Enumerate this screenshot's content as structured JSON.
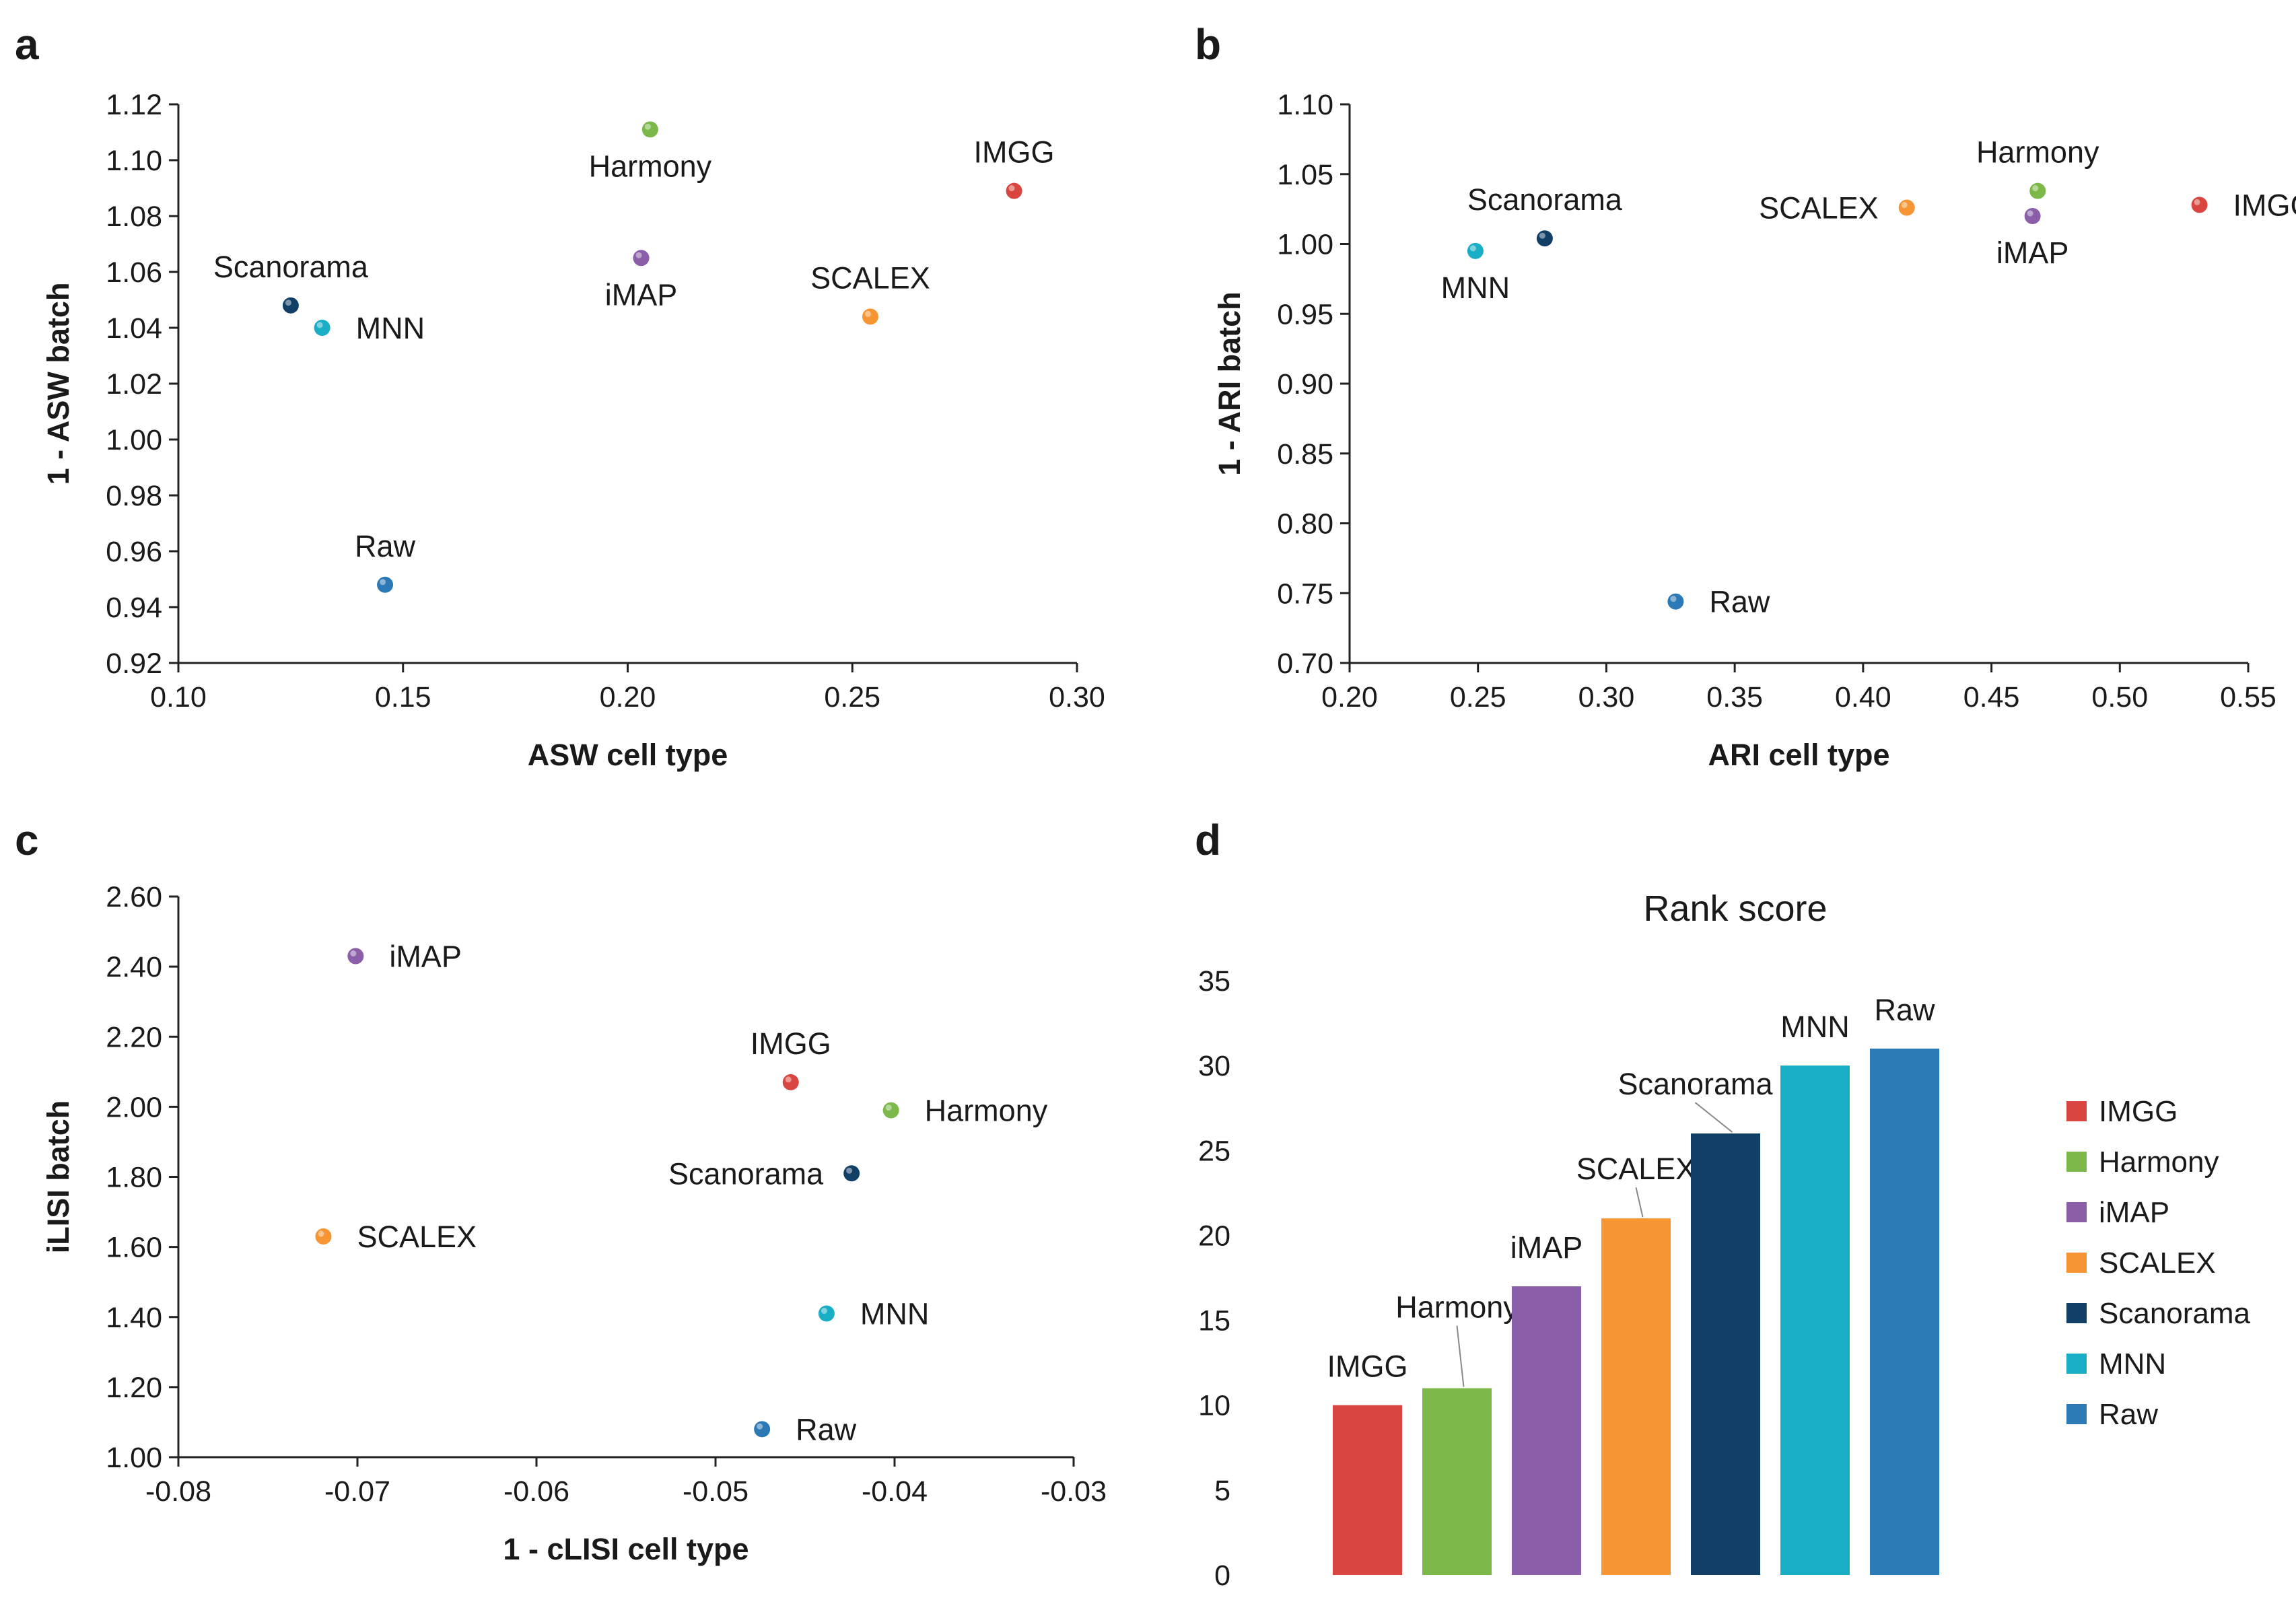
{
  "colors": {
    "IMGG": "#d9453f",
    "Harmony": "#7db84a",
    "iMAP": "#8a5ea8",
    "SCALEX": "#f79433",
    "Scanorama": "#123f66",
    "MNN": "#19aec6",
    "Raw": "#2b79b5"
  },
  "chart_data": [
    {
      "panel": "a",
      "type": "scatter",
      "title": "",
      "xlabel": "ASW cell type",
      "ylabel": "1 - ASW batch",
      "xlim": [
        0.1,
        0.3
      ],
      "ylim": [
        0.92,
        1.12
      ],
      "xticks": [
        "0.10",
        "0.15",
        "0.20",
        "0.25",
        "0.30"
      ],
      "yticks": [
        "0.92",
        "0.94",
        "0.96",
        "0.98",
        "1.00",
        "1.02",
        "1.04",
        "1.06",
        "1.08",
        "1.10",
        "1.12"
      ],
      "points": [
        {
          "name": "Harmony",
          "x": 0.205,
          "y": 1.111,
          "label_pos": "below"
        },
        {
          "name": "IMGG",
          "x": 0.286,
          "y": 1.089,
          "label_pos": "above"
        },
        {
          "name": "iMAP",
          "x": 0.203,
          "y": 1.065,
          "label_pos": "below"
        },
        {
          "name": "SCALEX",
          "x": 0.254,
          "y": 1.044,
          "label_pos": "above"
        },
        {
          "name": "Scanorama",
          "x": 0.125,
          "y": 1.048,
          "label_pos": "above"
        },
        {
          "name": "MNN",
          "x": 0.132,
          "y": 1.04,
          "label_pos": "right"
        },
        {
          "name": "Raw",
          "x": 0.146,
          "y": 0.948,
          "label_pos": "above"
        }
      ]
    },
    {
      "panel": "b",
      "type": "scatter",
      "title": "",
      "xlabel": "ARI cell type",
      "ylabel": "1 - ARI batch",
      "xlim": [
        0.2,
        0.55
      ],
      "ylim": [
        0.7,
        1.1
      ],
      "xticks": [
        "0.20",
        "0.25",
        "0.30",
        "0.35",
        "0.40",
        "0.45",
        "0.50",
        "0.55"
      ],
      "yticks": [
        "0.70",
        "0.75",
        "0.80",
        "0.85",
        "0.90",
        "0.95",
        "1.00",
        "1.05",
        "1.10"
      ],
      "points": [
        {
          "name": "Harmony",
          "x": 0.468,
          "y": 1.038,
          "label_pos": "above"
        },
        {
          "name": "IMGG",
          "x": 0.531,
          "y": 1.028,
          "label_pos": "right"
        },
        {
          "name": "SCALEX",
          "x": 0.417,
          "y": 1.026,
          "label_pos": "left"
        },
        {
          "name": "iMAP",
          "x": 0.466,
          "y": 1.02,
          "label_pos": "below"
        },
        {
          "name": "Scanorama",
          "x": 0.276,
          "y": 1.004,
          "label_pos": "above"
        },
        {
          "name": "MNN",
          "x": 0.249,
          "y": 0.995,
          "label_pos": "below"
        },
        {
          "name": "Raw",
          "x": 0.327,
          "y": 0.744,
          "label_pos": "right"
        }
      ]
    },
    {
      "panel": "c",
      "type": "scatter",
      "title": "",
      "xlabel": "1 - cLISI cell type",
      "ylabel": "iLISI batch",
      "xlim": [
        -0.08,
        -0.03
      ],
      "ylim": [
        1.0,
        2.6
      ],
      "xticks": [
        "-0.08",
        "-0.07",
        "-0.06",
        "-0.05",
        "-0.04",
        "-0.03"
      ],
      "yticks": [
        "1.00",
        "1.20",
        "1.40",
        "1.60",
        "1.80",
        "2.00",
        "2.20",
        "2.40",
        "2.60"
      ],
      "points": [
        {
          "name": "iMAP",
          "x": -0.0701,
          "y": 2.43,
          "label_pos": "right"
        },
        {
          "name": "IMGG",
          "x": -0.0458,
          "y": 2.07,
          "label_pos": "above"
        },
        {
          "name": "Harmony",
          "x": -0.0402,
          "y": 1.99,
          "label_pos": "right"
        },
        {
          "name": "Scanorama",
          "x": -0.0424,
          "y": 1.81,
          "label_pos": "left"
        },
        {
          "name": "SCALEX",
          "x": -0.0719,
          "y": 1.63,
          "label_pos": "right"
        },
        {
          "name": "MNN",
          "x": -0.0438,
          "y": 1.41,
          "label_pos": "right"
        },
        {
          "name": "Raw",
          "x": -0.0474,
          "y": 1.08,
          "label_pos": "right"
        }
      ]
    },
    {
      "panel": "d",
      "type": "bar",
      "title": "Rank score",
      "xlabel": "",
      "ylabel": "",
      "ylim": [
        0,
        35
      ],
      "yticks": [
        "0",
        "5",
        "10",
        "15",
        "20",
        "25",
        "30",
        "35"
      ],
      "categories": [
        "IMGG",
        "Harmony",
        "iMAP",
        "SCALEX",
        "Scanorama",
        "MNN",
        "Raw"
      ],
      "values": [
        10,
        11,
        17,
        21,
        26,
        30,
        31
      ],
      "legend": [
        "IMGG",
        "Harmony",
        "iMAP",
        "SCALEX",
        "Scanorama",
        "MNN",
        "Raw"
      ],
      "legend_position": "right"
    }
  ]
}
